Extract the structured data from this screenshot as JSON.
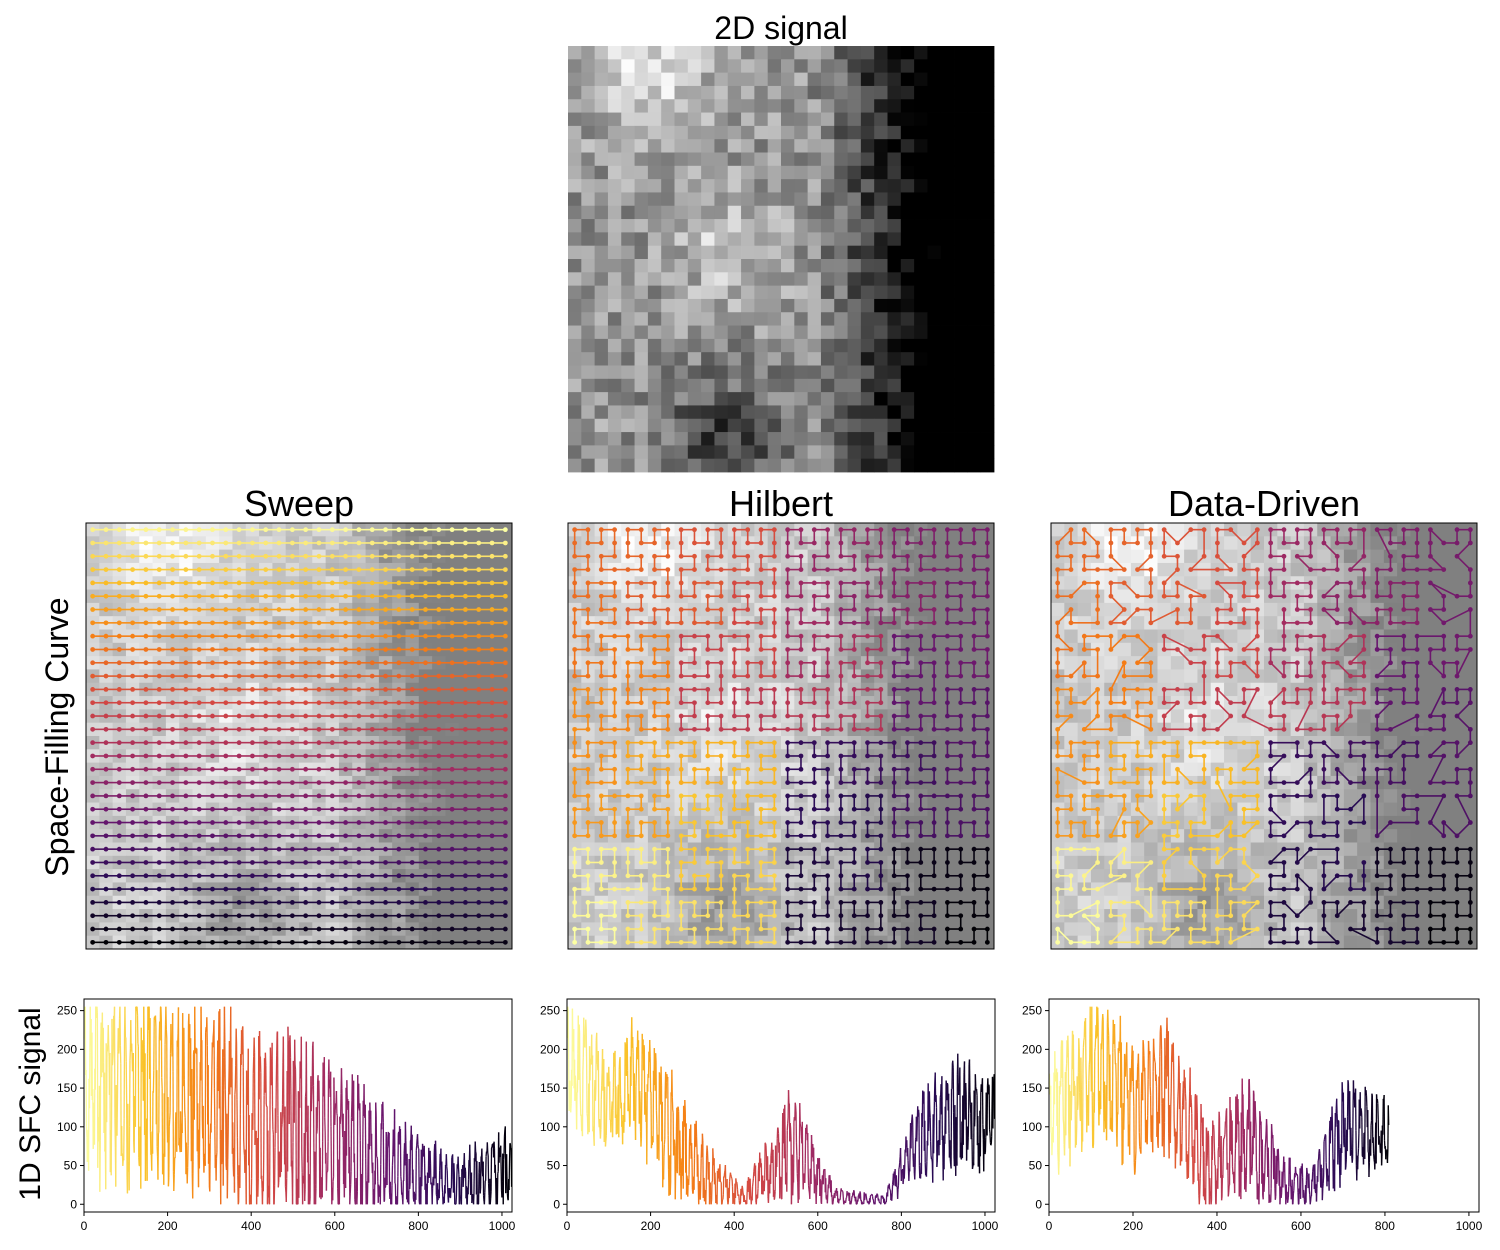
{
  "figure": {
    "row_labels": [
      "Space-Filling Curve",
      "1D SFC signal"
    ]
  },
  "chart_data": [
    {
      "type": "heatmap",
      "title": "2D signal",
      "grid_size": [
        32,
        32
      ],
      "colormap": "gray",
      "value_range": [
        0,
        255
      ],
      "description_pattern": "bright upper-left region, dark right side, mid-gray textured regions in lower-left"
    },
    {
      "type": "line",
      "title": "Sweep",
      "curve": "row-by-row sweep over 32x32 grid",
      "colormap": "inferno (dark at bottom rows, yellow at top rows)",
      "signal": {
        "x_range": [
          0,
          1024
        ],
        "xlim": [
          0,
          1024
        ],
        "ylim": [
          -10,
          265
        ],
        "xticks": [
          0,
          200,
          400,
          600,
          800,
          1000
        ],
        "yticks": [
          0,
          50,
          100,
          150,
          200,
          250
        ],
        "envelope": [
          {
            "x": 0,
            "y_low": 60,
            "y_high": 250
          },
          {
            "x": 150,
            "y_low": 40,
            "y_high": 255
          },
          {
            "x": 300,
            "y_low": 30,
            "y_high": 230
          },
          {
            "x": 400,
            "y_low": 0,
            "y_high": 210
          },
          {
            "x": 500,
            "y_low": 0,
            "y_high": 200
          },
          {
            "x": 600,
            "y_low": 0,
            "y_high": 160
          },
          {
            "x": 700,
            "y_low": 0,
            "y_high": 130
          },
          {
            "x": 800,
            "y_low": 0,
            "y_high": 80
          },
          {
            "x": 900,
            "y_low": 0,
            "y_high": 60
          },
          {
            "x": 1024,
            "y_low": 0,
            "y_high": 90
          }
        ]
      }
    },
    {
      "type": "line",
      "title": "Hilbert",
      "curve": "Hilbert curve over 32x32 grid",
      "colormap": "inferno",
      "signal": {
        "x_range": [
          0,
          1024
        ],
        "xlim": [
          0,
          1024
        ],
        "ylim": [
          -10,
          265
        ],
        "xticks": [
          0,
          200,
          400,
          600,
          800,
          1000
        ],
        "yticks": [
          0,
          50,
          100,
          150,
          200,
          250
        ],
        "envelope": [
          {
            "x": 0,
            "y_low": 120,
            "y_high": 255
          },
          {
            "x": 100,
            "y_low": 80,
            "y_high": 180
          },
          {
            "x": 160,
            "y_low": 100,
            "y_high": 230
          },
          {
            "x": 260,
            "y_low": 20,
            "y_high": 150
          },
          {
            "x": 320,
            "y_low": 0,
            "y_high": 80
          },
          {
            "x": 420,
            "y_low": 0,
            "y_high": 20
          },
          {
            "x": 540,
            "y_low": 20,
            "y_high": 140
          },
          {
            "x": 640,
            "y_low": 0,
            "y_high": 20
          },
          {
            "x": 760,
            "y_low": 0,
            "y_high": 10
          },
          {
            "x": 850,
            "y_low": 40,
            "y_high": 140
          },
          {
            "x": 950,
            "y_low": 60,
            "y_high": 180
          },
          {
            "x": 1024,
            "y_low": 60,
            "y_high": 150
          }
        ]
      }
    },
    {
      "type": "line",
      "title": "Data-Driven",
      "curve": "data-driven space-filling curve",
      "colormap": "inferno",
      "signal": {
        "x_range": [
          0,
          810
        ],
        "xlim": [
          0,
          1024
        ],
        "ylim": [
          -10,
          265
        ],
        "xticks": [
          0,
          200,
          400,
          600,
          800,
          1000
        ],
        "yticks": [
          0,
          50,
          100,
          150,
          200,
          250
        ],
        "envelope": [
          {
            "x": 0,
            "y_low": 50,
            "y_high": 170
          },
          {
            "x": 100,
            "y_low": 100,
            "y_high": 255
          },
          {
            "x": 200,
            "y_low": 60,
            "y_high": 200
          },
          {
            "x": 280,
            "y_low": 80,
            "y_high": 230
          },
          {
            "x": 380,
            "y_low": 0,
            "y_high": 100
          },
          {
            "x": 480,
            "y_low": 20,
            "y_high": 150
          },
          {
            "x": 560,
            "y_low": 0,
            "y_high": 60
          },
          {
            "x": 620,
            "y_low": 0,
            "y_high": 40
          },
          {
            "x": 700,
            "y_low": 40,
            "y_high": 150
          },
          {
            "x": 810,
            "y_low": 60,
            "y_high": 130
          }
        ]
      }
    }
  ]
}
